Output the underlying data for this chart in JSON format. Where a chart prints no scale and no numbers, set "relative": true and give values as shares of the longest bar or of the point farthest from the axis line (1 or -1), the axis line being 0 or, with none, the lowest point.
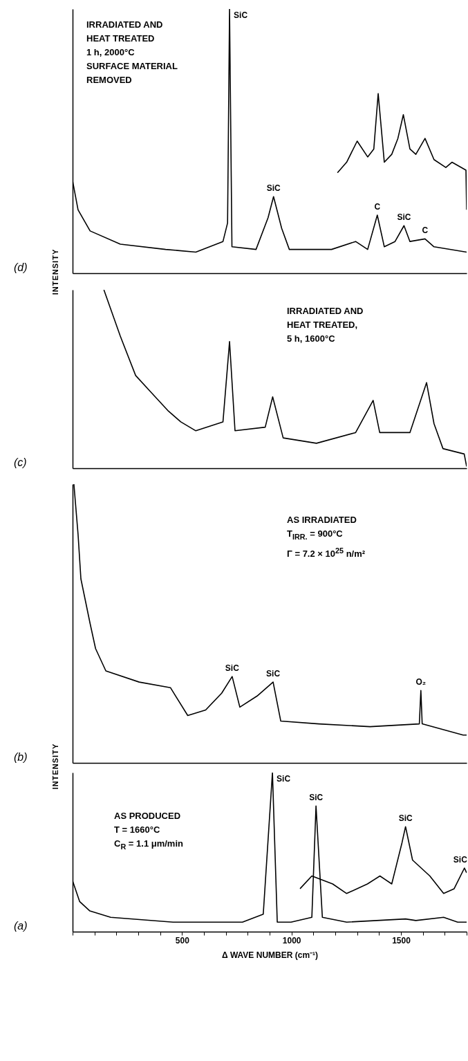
{
  "chart_data": [
    {
      "type": "line",
      "relative": true,
      "xlim": [
        0,
        1800
      ],
      "tick_labels": false,
      "ylabel": "INTENSITY",
      "series": [
        {
          "color": "#000000",
          "x": [
            0,
            25,
            80,
            218,
            425,
            563,
            687,
            708,
            717,
            728,
            838,
            893,
            918,
            955,
            990,
            1183,
            1293,
            1348,
            1392,
            1424,
            1473,
            1514,
            1541,
            1610,
            1651,
            1800
          ],
          "values": [
            0.35,
            0.24,
            0.16,
            0.11,
            0.09,
            0.08,
            0.12,
            0.19,
            1.0,
            0.1,
            0.09,
            0.21,
            0.29,
            0.17,
            0.09,
            0.09,
            0.12,
            0.09,
            0.22,
            0.1,
            0.12,
            0.18,
            0.12,
            0.13,
            0.1,
            0.08
          ]
        },
        {
          "color": "#000000",
          "x": [
            1210,
            1252,
            1300,
            1348,
            1376,
            1396,
            1424,
            1458,
            1486,
            1511,
            1541,
            1568,
            1610,
            1651,
            1705,
            1733,
            1797,
            1800
          ],
          "values": [
            0.38,
            0.42,
            0.5,
            0.44,
            0.47,
            0.68,
            0.42,
            0.45,
            0.51,
            0.6,
            0.47,
            0.45,
            0.51,
            0.43,
            0.4,
            0.42,
            0.39,
            0.24
          ]
        }
      ],
      "annotations": [
        "(d)",
        "IRRADIATED AND",
        "HEAT TREATED",
        "1 h, 2000°C",
        "SURFACE MATERIAL",
        "REMOVED",
        {
          "text": "SiC",
          "x": 717,
          "y": 1.0
        },
        {
          "text": "SiC",
          "x": 918,
          "y": 0.29
        },
        {
          "text": "C",
          "x": 1392,
          "y": 0.22
        },
        {
          "text": "SiC",
          "x": 1514,
          "y": 0.18
        },
        {
          "text": "C",
          "x": 1610,
          "y": 0.13
        }
      ]
    },
    {
      "type": "line",
      "relative": true,
      "xlim": [
        0,
        1800
      ],
      "tick_labels": false,
      "series": [
        {
          "color": "#000000",
          "x": [
            143,
            218,
            288,
            355,
            438,
            494,
            563,
            687,
            717,
            742,
            880,
            914,
            962,
            1114,
            1293,
            1373,
            1403,
            1541,
            1617,
            1651,
            1692,
            1789,
            1800
          ],
          "values": [
            1.0,
            0.74,
            0.52,
            0.43,
            0.32,
            0.26,
            0.21,
            0.26,
            0.71,
            0.21,
            0.23,
            0.4,
            0.17,
            0.14,
            0.2,
            0.38,
            0.2,
            0.2,
            0.48,
            0.25,
            0.11,
            0.08,
            0.01
          ]
        }
      ],
      "annotations": [
        "(c)",
        "IRRADIATED AND",
        "HEAT TREATED,",
        "5 h, 1600°C"
      ]
    },
    {
      "type": "line",
      "relative": true,
      "xlim": [
        0,
        1800
      ],
      "tick_labels": false,
      "ylabel": "INTENSITY",
      "series": [
        {
          "color": "#000000",
          "x": [
            6,
            25,
            38,
            80,
            105,
            152,
            304,
            447,
            526,
            608,
            681,
            729,
            764,
            843,
            916,
            951,
            1125,
            1359,
            1584,
            1591,
            1597,
            1784,
            1800
          ],
          "values": [
            1.0,
            0.82,
            0.66,
            0.5,
            0.41,
            0.33,
            0.29,
            0.27,
            0.17,
            0.19,
            0.25,
            0.31,
            0.2,
            0.24,
            0.29,
            0.15,
            0.14,
            0.13,
            0.14,
            0.26,
            0.14,
            0.1,
            0.1
          ]
        }
      ],
      "annotations": [
        "(b)",
        "AS IRRADIATED",
        "T$_{IRR.}$ = 900°C",
        "Γ = 7.2 × 10$^{25}$ n/m²",
        {
          "text": "SiC",
          "x": 729,
          "y": 0.31
        },
        {
          "text": "SiC",
          "x": 916,
          "y": 0.29
        },
        {
          "text": "O₂",
          "x": 1591,
          "y": 0.26
        }
      ]
    },
    {
      "type": "line",
      "relative": true,
      "xlim": [
        0,
        1800
      ],
      "tick_labels": "x",
      "xlabel": "Δ WAVE NUMBER (cm⁻¹)",
      "xticks": [
        {
          "value": 0,
          "label": null
        },
        {
          "value": 100,
          "label": null
        },
        {
          "value": 200,
          "label": null
        },
        {
          "value": 300,
          "label": null
        },
        {
          "value": 400,
          "label": null
        },
        500,
        {
          "value": 600,
          "label": null
        },
        {
          "value": 700,
          "label": null
        },
        {
          "value": 800,
          "label": null
        },
        {
          "value": 900,
          "label": null
        },
        1000,
        {
          "value": 1100,
          "label": null
        },
        {
          "value": 1200,
          "label": null
        },
        {
          "value": 1300,
          "label": null
        },
        {
          "value": 1400,
          "label": null
        },
        1500,
        {
          "value": 1600,
          "label": null
        },
        {
          "value": 1700,
          "label": null
        },
        {
          "value": 1800,
          "label": null
        }
      ],
      "series": [
        {
          "color": "#000000",
          "x": [
            0,
            32,
            79,
            174,
            459,
            776,
            871,
            913,
            935,
            998,
            1093,
            1112,
            1141,
            1252,
            1521,
            1568,
            1695,
            1759,
            1800
          ],
          "values": [
            0.32,
            0.19,
            0.13,
            0.09,
            0.06,
            0.06,
            0.11,
            1.0,
            0.06,
            0.06,
            0.09,
            0.79,
            0.09,
            0.06,
            0.08,
            0.07,
            0.09,
            0.06,
            0.06
          ]
        },
        {
          "color": "#000000",
          "x": [
            1039,
            1093,
            1188,
            1252,
            1347,
            1404,
            1458,
            1505,
            1521,
            1553,
            1632,
            1695,
            1743,
            1790,
            1800
          ],
          "values": [
            0.27,
            0.35,
            0.3,
            0.24,
            0.3,
            0.35,
            0.3,
            0.56,
            0.66,
            0.45,
            0.35,
            0.24,
            0.27,
            0.4,
            0.37
          ]
        }
      ],
      "annotations": [
        "(a)",
        "AS PRODUCED",
        "T = 1660°C",
        "C$_{R}$ = 1.1 μm/min",
        {
          "text": "SiC",
          "x": 913,
          "y": 1.0
        },
        {
          "text": "SiC",
          "x": 1112,
          "y": 0.79
        },
        {
          "text": "SiC",
          "x": 1521,
          "y": 0.66
        },
        {
          "text": "SiC",
          "x": 1790,
          "y": 0.4
        }
      ]
    }
  ]
}
